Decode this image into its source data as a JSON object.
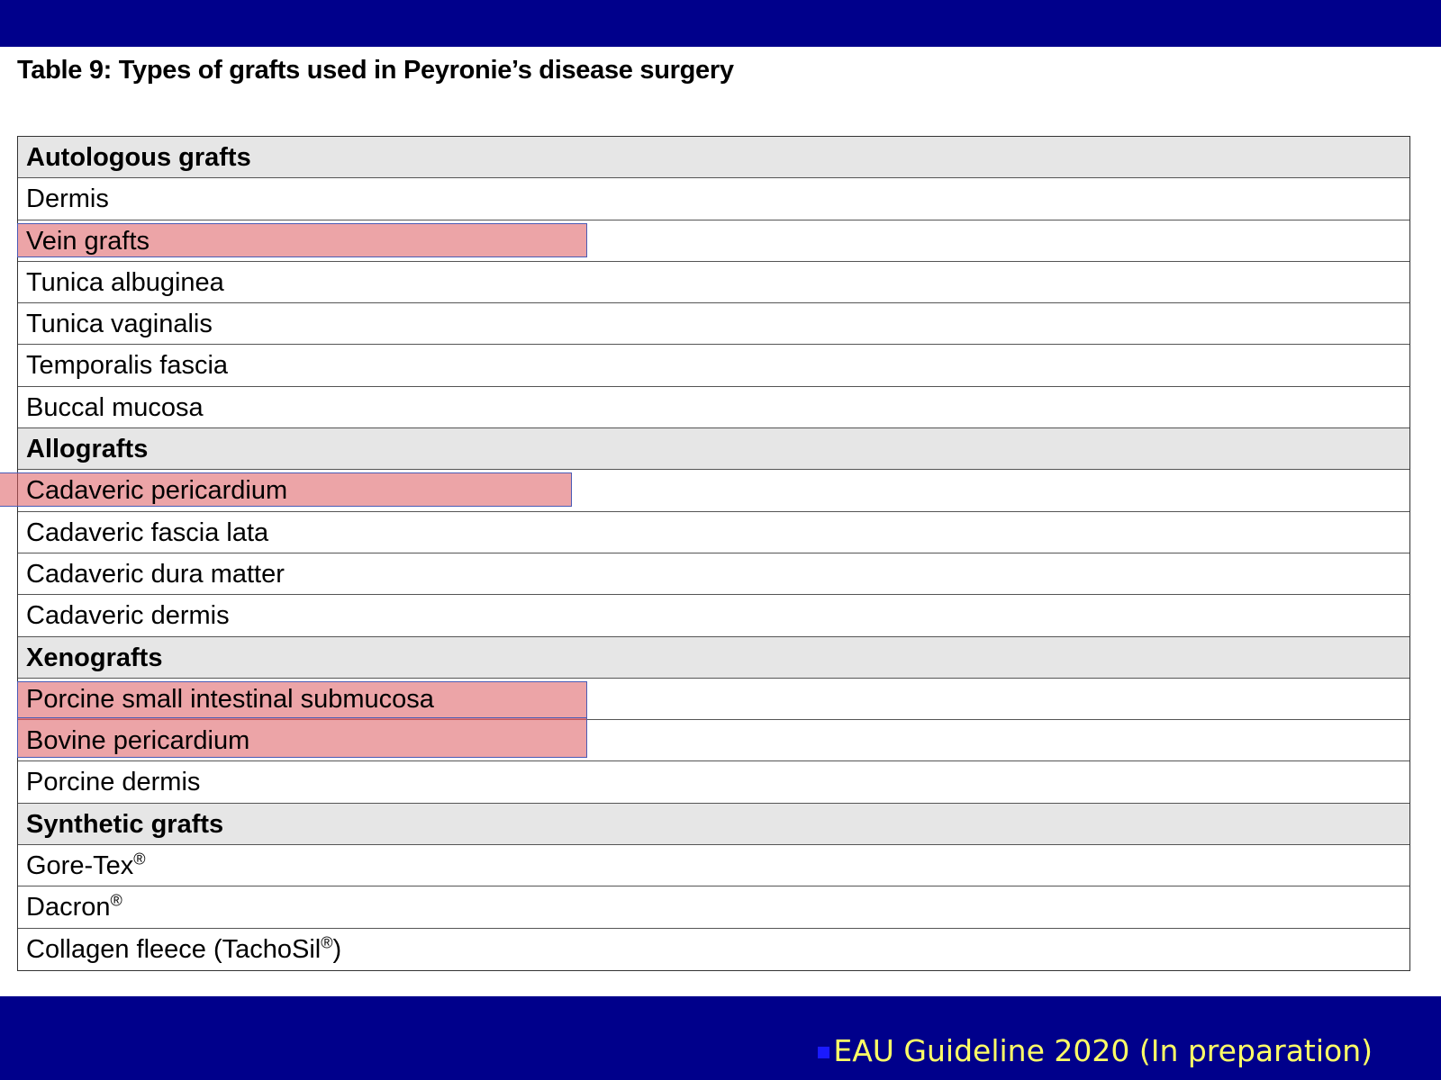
{
  "slide": {
    "title": "Table 9: Types of grafts used in Peyronie’s disease surgery",
    "source": "EAU Guideline 2020 (In preparation)",
    "colors": {
      "banner": "#00008b",
      "source_text": "#ffff66",
      "highlight": "#e8a0a2",
      "section_header_bg": "#e6e6e6"
    }
  },
  "table": {
    "rows": [
      {
        "text": "Autologous grafts",
        "header": true
      },
      {
        "text": "Dermis"
      },
      {
        "text": "Vein grafts",
        "highlighted": true
      },
      {
        "text": "Tunica albuginea"
      },
      {
        "text": "Tunica vaginalis"
      },
      {
        "text": "Temporalis fascia"
      },
      {
        "text": "Buccal mucosa"
      },
      {
        "text": "Allografts",
        "header": true
      },
      {
        "text": "Cadaveric pericardium",
        "highlighted": true
      },
      {
        "text": "Cadaveric fascia lata"
      },
      {
        "text": "Cadaveric dura matter"
      },
      {
        "text": "Cadaveric dermis"
      },
      {
        "text": "Xenografts",
        "header": true
      },
      {
        "text": "Porcine small intestinal submucosa",
        "highlighted": true
      },
      {
        "text": "Bovine pericardium",
        "highlighted": true
      },
      {
        "text": "Porcine dermis"
      },
      {
        "text": "Synthetic grafts",
        "header": true
      },
      {
        "text": "Gore-Tex",
        "sup": "®"
      },
      {
        "text": "Dacron",
        "sup": "®"
      },
      {
        "text": "Collagen fleece (TachoSil",
        "sup": "®",
        "suffix": ")"
      }
    ]
  }
}
